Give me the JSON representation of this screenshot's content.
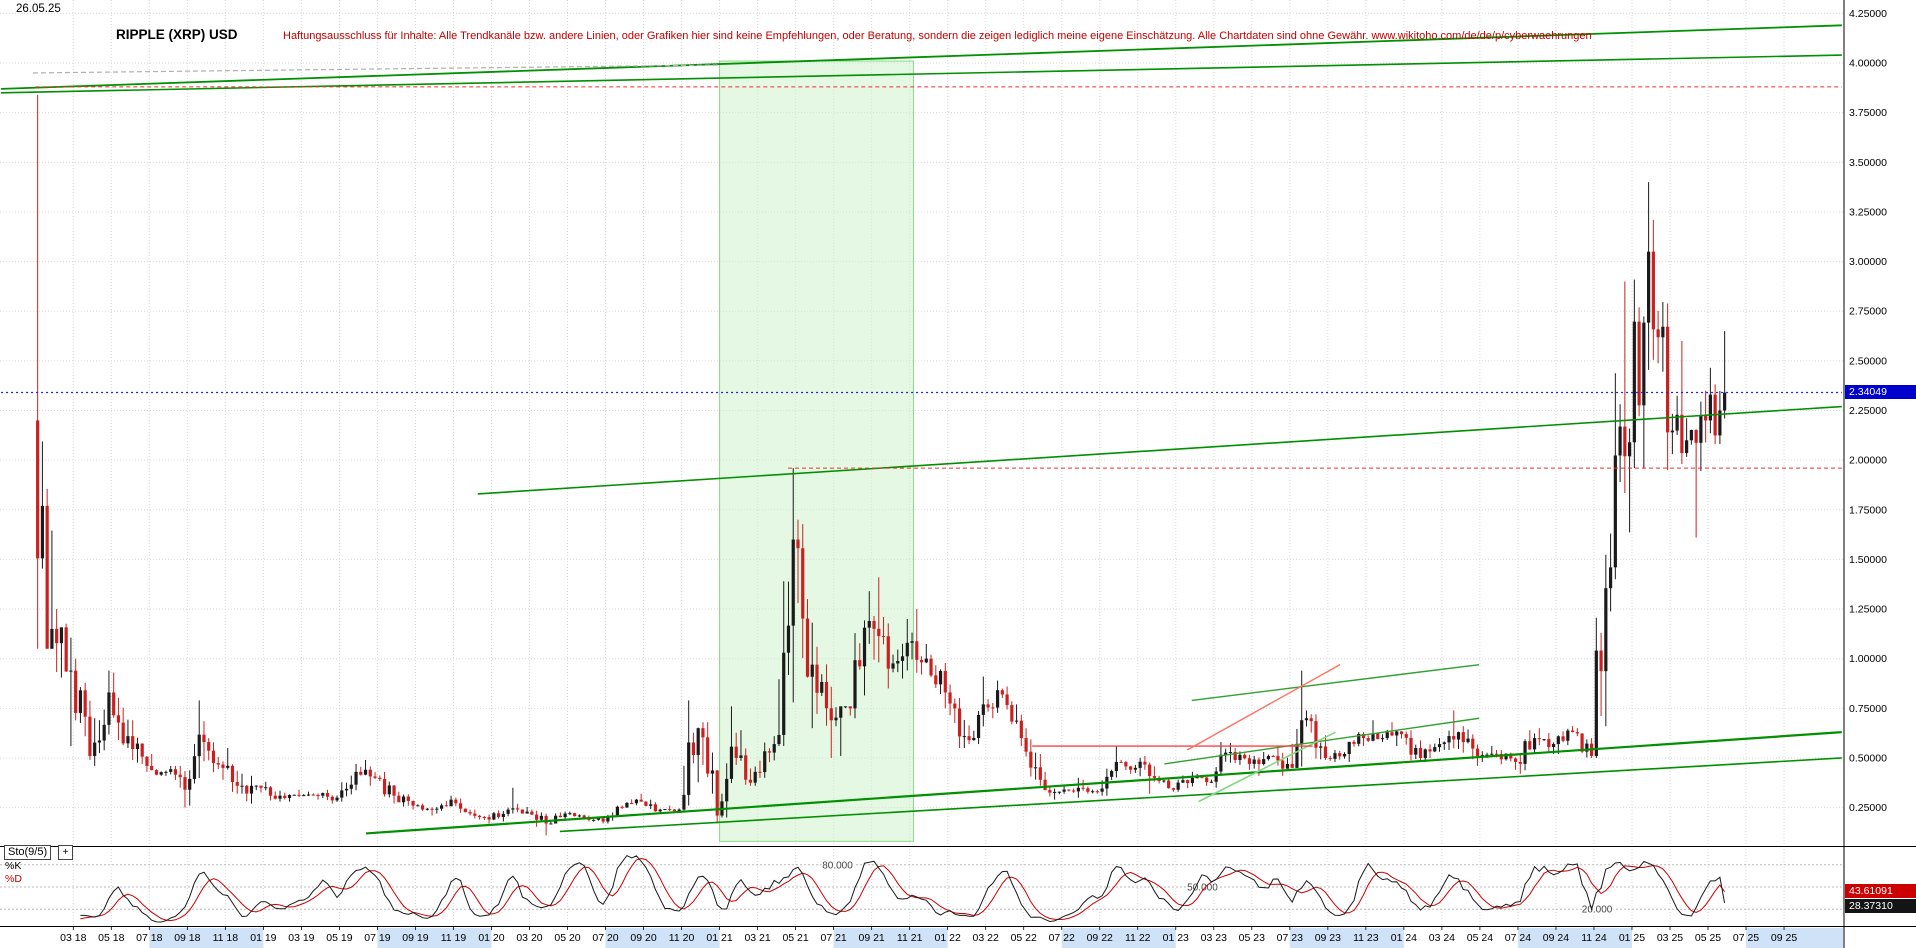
{
  "meta": {
    "date_label": "26.05.25",
    "title": "RIPPLE (XRP) USD",
    "disclaimer": "Haftungsausschluss für Inhalte: Alle Trendkanäle bzw. andere Linien, oder Grafiken hier sind keine Empfehlungen, oder Beratung, sondern die zeigen lediglich meine eigene Einschätzung. Alle Chartdaten sind ohne Gewähr.  www.wikitoho.com/de/de/p/cyberwaehrungen"
  },
  "price_axis": {
    "labels": [
      "4.25000",
      "4.00000",
      "3.75000",
      "3.50000",
      "3.25000",
      "3.00000",
      "2.75000",
      "2.50000",
      "2.25000",
      "2.00000",
      "1.75000",
      "1.50000",
      "1.25000",
      "1.00000",
      "0.75000",
      "0.50000",
      "0.25000"
    ],
    "current_price": "2.34049",
    "current_price_value": 2.34049
  },
  "x_axis": {
    "labels": [
      "03 18",
      "05 18",
      "07 18",
      "09 18",
      "11 18",
      "01 19",
      "03 19",
      "05 19",
      "07 19",
      "09 19",
      "11 19",
      "01 20",
      "03 20",
      "05 20",
      "07 20",
      "09 20",
      "11 20",
      "01 21",
      "03 21",
      "05 21",
      "07 21",
      "09 21",
      "11 21",
      "01 22",
      "03 22",
      "05 22",
      "07 22",
      "09 22",
      "11 22",
      "01 23",
      "03 23",
      "05 23",
      "07 23",
      "09 23",
      "11 23",
      "01 24",
      "03 24",
      "05 24",
      "07 24",
      "09 24",
      "11 24",
      "01 25",
      "03 25",
      "05 25",
      "07 25",
      "09 25"
    ]
  },
  "indicator": {
    "name_label": "Sto(9/5)",
    "plus_label": "+",
    "k_label": "%K",
    "d_label": "%D",
    "k_value": "28.37310",
    "k_value_num": 28.3731,
    "d_value": "43.61091",
    "d_value_num": 43.61091,
    "levels": [
      {
        "value": 80,
        "label": "80.000"
      },
      {
        "value": 50,
        "label": "50.000"
      },
      {
        "value": 20,
        "label": "20.000"
      }
    ]
  },
  "chart_data": {
    "type": "candlestick",
    "title": "RIPPLE (XRP) USD",
    "interval_note": "weekly candles estimated from monthly high/low/close anchors",
    "monthly_start": "2018-01",
    "monthly_hlc": [
      [
        3.84,
        1.05,
        1.15
      ],
      [
        1.25,
        0.56,
        0.94
      ],
      [
        1.0,
        0.49,
        0.51
      ],
      [
        0.94,
        0.46,
        0.83
      ],
      [
        0.93,
        0.55,
        0.61
      ],
      [
        0.69,
        0.43,
        0.46
      ],
      [
        0.52,
        0.41,
        0.43
      ],
      [
        0.46,
        0.25,
        0.34
      ],
      [
        0.79,
        0.26,
        0.58
      ],
      [
        0.6,
        0.39,
        0.45
      ],
      [
        0.55,
        0.32,
        0.36
      ],
      [
        0.41,
        0.27,
        0.35
      ],
      [
        0.38,
        0.28,
        0.31
      ],
      [
        0.34,
        0.28,
        0.31
      ],
      [
        0.33,
        0.29,
        0.31
      ],
      [
        0.34,
        0.27,
        0.3
      ],
      [
        0.47,
        0.28,
        0.43
      ],
      [
        0.49,
        0.36,
        0.4
      ],
      [
        0.43,
        0.27,
        0.31
      ],
      [
        0.33,
        0.24,
        0.26
      ],
      [
        0.27,
        0.21,
        0.24
      ],
      [
        0.31,
        0.22,
        0.29
      ],
      [
        0.3,
        0.21,
        0.22
      ],
      [
        0.24,
        0.17,
        0.19
      ],
      [
        0.25,
        0.18,
        0.24
      ],
      [
        0.35,
        0.22,
        0.23
      ],
      [
        0.24,
        0.11,
        0.17
      ],
      [
        0.23,
        0.17,
        0.22
      ],
      [
        0.23,
        0.19,
        0.2
      ],
      [
        0.21,
        0.17,
        0.18
      ],
      [
        0.26,
        0.17,
        0.25
      ],
      [
        0.32,
        0.25,
        0.28
      ],
      [
        0.29,
        0.22,
        0.24
      ],
      [
        0.26,
        0.23,
        0.24
      ],
      [
        0.79,
        0.23,
        0.65
      ],
      [
        0.68,
        0.17,
        0.21
      ],
      [
        0.76,
        0.2,
        0.5
      ],
      [
        0.64,
        0.36,
        0.43
      ],
      [
        0.61,
        0.4,
        0.57
      ],
      [
        1.96,
        0.56,
        1.6
      ],
      [
        1.7,
        0.65,
        0.97
      ],
      [
        1.06,
        0.5,
        0.69
      ],
      [
        0.76,
        0.51,
        0.75
      ],
      [
        1.34,
        0.7,
        1.19
      ],
      [
        1.41,
        0.85,
        0.95
      ],
      [
        1.2,
        0.9,
        1.08
      ],
      [
        1.25,
        0.92,
        1.0
      ],
      [
        1.02,
        0.75,
        0.83
      ],
      [
        0.87,
        0.55,
        0.61
      ],
      [
        0.91,
        0.57,
        0.77
      ],
      [
        0.89,
        0.7,
        0.82
      ],
      [
        0.86,
        0.56,
        0.6
      ],
      [
        0.65,
        0.36,
        0.39
      ],
      [
        0.43,
        0.29,
        0.33
      ],
      [
        0.4,
        0.3,
        0.35
      ],
      [
        0.39,
        0.32,
        0.33
      ],
      [
        0.56,
        0.31,
        0.48
      ],
      [
        0.49,
        0.42,
        0.45
      ],
      [
        0.51,
        0.32,
        0.4
      ],
      [
        0.41,
        0.33,
        0.34
      ],
      [
        0.43,
        0.33,
        0.4
      ],
      [
        0.42,
        0.36,
        0.38
      ],
      [
        0.58,
        0.35,
        0.53
      ],
      [
        0.55,
        0.44,
        0.47
      ],
      [
        0.53,
        0.41,
        0.51
      ],
      [
        0.56,
        0.41,
        0.47
      ],
      [
        0.94,
        0.45,
        0.7
      ],
      [
        0.72,
        0.49,
        0.5
      ],
      [
        0.54,
        0.48,
        0.52
      ],
      [
        0.63,
        0.48,
        0.6
      ],
      [
        0.69,
        0.58,
        0.6
      ],
      [
        0.68,
        0.56,
        0.62
      ],
      [
        0.64,
        0.48,
        0.5
      ],
      [
        0.6,
        0.48,
        0.57
      ],
      [
        0.74,
        0.54,
        0.63
      ],
      [
        0.66,
        0.46,
        0.51
      ],
      [
        0.56,
        0.48,
        0.52
      ],
      [
        0.54,
        0.44,
        0.48
      ],
      [
        0.64,
        0.42,
        0.6
      ],
      [
        0.65,
        0.52,
        0.57
      ],
      [
        0.66,
        0.52,
        0.63
      ],
      [
        0.65,
        0.5,
        0.51
      ],
      [
        1.63,
        0.5,
        1.46
      ],
      [
        2.9,
        1.4,
        2.09
      ],
      [
        3.4,
        1.96,
        3.05
      ],
      [
        3.21,
        1.95,
        2.14
      ],
      [
        2.6,
        1.98,
        2.1
      ],
      [
        2.35,
        1.61,
        2.2
      ],
      [
        2.65,
        2.08,
        2.34
      ]
    ],
    "last_price": 2.34049,
    "value_axis_range": [
      0.06,
      4.32
    ],
    "time_axis_range": [
      2017.85,
      2025.93
    ],
    "colors": {
      "up": "#1a1a1a",
      "down": "#cc2020",
      "current_price_line": "#2020cc",
      "trend_green": "#009000",
      "grid": "#d9d9d9"
    },
    "trend_lines": [
      {
        "t1": 2017.85,
        "v1": 3.87,
        "t2": 2025.92,
        "v2": 4.19,
        "color": "#009000",
        "w": 1.8
      },
      {
        "t1": 2017.85,
        "v1": 3.85,
        "t2": 2025.92,
        "v2": 4.04,
        "color": "#009000",
        "w": 1.6
      },
      {
        "t1": 2019.94,
        "v1": 1.83,
        "t2": 2025.92,
        "v2": 2.27,
        "color": "#009000",
        "w": 1.6
      },
      {
        "t1": 2019.45,
        "v1": 0.12,
        "t2": 2025.92,
        "v2": 0.63,
        "color": "#009000",
        "w": 2.2
      },
      {
        "t1": 2020.3,
        "v1": 0.13,
        "t2": 2025.92,
        "v2": 0.5,
        "color": "#009000",
        "w": 1.6
      },
      {
        "t1": 2023.07,
        "v1": 0.79,
        "t2": 2024.33,
        "v2": 0.97,
        "color": "#30a030",
        "w": 1.4
      },
      {
        "t1": 2022.95,
        "v1": 0.47,
        "t2": 2024.33,
        "v2": 0.7,
        "color": "#30a030",
        "w": 1.4
      },
      {
        "t1": 2023.1,
        "v1": 0.28,
        "t2": 2023.7,
        "v2": 0.63,
        "color": "#7fd87f",
        "w": 1.6
      },
      {
        "t1": 2022.37,
        "v1": 0.56,
        "t2": 2023.6,
        "v2": 0.56,
        "color": "#ff4040",
        "w": 1.4
      },
      {
        "t1": 2023.05,
        "v1": 0.54,
        "t2": 2023.72,
        "v2": 0.97,
        "color": "#ff7060",
        "w": 1.4
      },
      {
        "t1": 2017.99,
        "v1": 3.95,
        "t2": 2021.0,
        "v2": 3.99,
        "color": "#b0b0b0",
        "w": 1.2,
        "dash": "5,3"
      }
    ],
    "hlines": [
      {
        "v": 3.88,
        "t1": 2018.0,
        "t2": 2025.92,
        "color": "#ee3030",
        "dash": "4,3",
        "w": 1
      },
      {
        "v": 1.96,
        "t1": 2021.3,
        "t2": 2025.92,
        "color": "#ee3030",
        "dash": "4,3",
        "w": 1
      },
      {
        "v": 2.34049,
        "t1": 2017.85,
        "t2": 2025.92,
        "color": "#2020cc",
        "dash": "2,3",
        "w": 1.2
      }
    ],
    "region": {
      "t1": 2021.0,
      "t2": 2021.85,
      "v1": 0.08,
      "v2": 4.01,
      "fill": "#c9f2c9",
      "opacity": 0.5,
      "border": "#8ad88a"
    },
    "stochastic": {
      "name": "Sto(9/5)",
      "k_period": 9,
      "d_period": 5,
      "k_last": 28.3731,
      "d_last": 43.61091,
      "levels": [
        80,
        50,
        20
      ]
    }
  }
}
